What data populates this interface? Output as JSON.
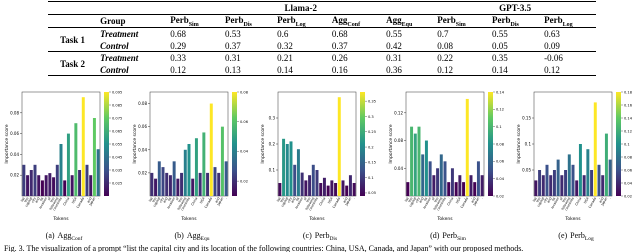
{
  "table": {
    "group_header": "Group",
    "models": [
      {
        "label": "Llama-2",
        "columns": [
          {
            "base": "Perb",
            "sub": "Sim"
          },
          {
            "base": "Perb",
            "sub": "Dis"
          },
          {
            "base": "Perb",
            "sub": "Log"
          },
          {
            "base": "Agg",
            "sub": "Conf"
          },
          {
            "base": "Agg",
            "sub": "Equ"
          }
        ]
      },
      {
        "label": "GPT-3.5",
        "columns": [
          {
            "base": "Perb",
            "sub": "Sim"
          },
          {
            "base": "Perb",
            "sub": "Dis"
          },
          {
            "base": "Perb",
            "sub": "Log"
          }
        ]
      }
    ],
    "rows": [
      {
        "task": "Task 1",
        "entries": [
          {
            "group": "Treatment",
            "values": [
              0.68,
              0.53,
              0.6,
              0.68,
              0.55,
              0.7,
              0.55,
              0.63
            ]
          },
          {
            "group": "Control",
            "values": [
              0.29,
              0.37,
              0.32,
              0.37,
              0.42,
              0.08,
              0.05,
              0.09
            ]
          }
        ]
      },
      {
        "task": "Task 2",
        "entries": [
          {
            "group": "Treatment",
            "values": [
              0.33,
              0.31,
              0.21,
              0.26,
              0.31,
              0.22,
              0.35,
              -0.06
            ]
          },
          {
            "group": "Control",
            "values": [
              0.12,
              0.13,
              0.14,
              0.16,
              0.36,
              0.12,
              0.14,
              0.12
            ]
          }
        ]
      }
    ]
  },
  "chart_data": [
    {
      "type": "bar",
      "xlabel": "Tokens",
      "ylabel": "Importance score",
      "colormap": "viridis",
      "categories": [
        "list",
        "the",
        "capital",
        "city",
        "and",
        "its",
        "location",
        "of",
        "the",
        "following",
        "countries",
        ":",
        "China",
        ",",
        "USA",
        ",",
        "Canada",
        ",",
        "and",
        "Japan",
        "."
      ],
      "values": [
        0.03,
        0.02,
        0.025,
        0.03,
        0.02,
        0.015,
        0.02,
        0.022,
        0.018,
        0.03,
        0.05,
        0.015,
        0.06,
        0.02,
        0.07,
        0.025,
        0.095,
        0.03,
        0.02,
        0.075,
        0.045
      ],
      "ylim": [
        0,
        0.1
      ],
      "yticks": [
        0.02,
        0.04,
        0.06,
        0.08
      ],
      "clim": [
        0.015,
        0.095
      ],
      "cticks": [
        0.025,
        0.035,
        0.045,
        0.055,
        0.065,
        0.075,
        0.085,
        0.095
      ],
      "caption": {
        "label": "(a)",
        "base": "Agg",
        "sub": "Conf"
      }
    },
    {
      "type": "bar",
      "xlabel": "Tokens",
      "ylabel": "Importance score",
      "colormap": "viridis",
      "categories": [
        "list",
        "the",
        "capital",
        "city",
        "and",
        "its",
        "location",
        "of",
        "the",
        "following",
        "countries",
        ":",
        "China",
        ",",
        "USA",
        ",",
        "Canada",
        ",",
        "and",
        "Japan",
        "."
      ],
      "values": [
        0.02,
        0.015,
        0.03,
        0.025,
        0.02,
        0.018,
        0.03,
        0.015,
        0.02,
        0.04,
        0.045,
        0.015,
        0.05,
        0.02,
        0.055,
        0.02,
        0.08,
        0.025,
        0.02,
        0.06,
        0.03
      ],
      "ylim": [
        0,
        0.09
      ],
      "yticks": [
        0.02,
        0.04,
        0.06,
        0.08
      ],
      "clim": [
        0.01,
        0.08
      ],
      "cticks": [
        0.02,
        0.04,
        0.06,
        0.08
      ],
      "caption": {
        "label": "(b)",
        "base": "Agg",
        "sub": "Equ"
      }
    },
    {
      "type": "bar",
      "xlabel": "Tokens",
      "ylabel": "Importance score",
      "colormap": "viridis",
      "categories": [
        "list",
        "the",
        "capital",
        "city",
        "and",
        "its",
        "location",
        "of",
        "the",
        "following",
        "countries",
        ":",
        "China",
        ",",
        "USA",
        ",",
        "Canada",
        ",",
        "and",
        "Japan",
        "."
      ],
      "values": [
        0.05,
        0.22,
        0.2,
        0.21,
        0.12,
        0.18,
        0.09,
        0.06,
        0.08,
        0.12,
        0.1,
        0.05,
        0.07,
        0.04,
        0.06,
        0.05,
        0.38,
        0.06,
        0.04,
        0.08,
        0.05
      ],
      "ylim": [
        0,
        0.4
      ],
      "yticks": [
        0.1,
        0.2,
        0.3
      ],
      "clim": [
        0.04,
        0.38
      ],
      "cticks": [
        0.05,
        0.1,
        0.15,
        0.2,
        0.25,
        0.3,
        0.35
      ],
      "caption": {
        "label": "(c)",
        "base": "Perb",
        "sub": "Dis"
      }
    },
    {
      "type": "bar",
      "xlabel": "Tokens",
      "ylabel": "Importance score",
      "colormap": "viridis",
      "categories": [
        "list",
        "the",
        "capital",
        "city",
        "and",
        "its",
        "location",
        "of",
        "the",
        "following",
        "countries",
        ":",
        "China",
        ",",
        "USA",
        ",",
        "Canada",
        ",",
        "and",
        "Japan",
        "."
      ],
      "values": [
        0.02,
        0.1,
        0.09,
        0.1,
        0.06,
        0.08,
        0.05,
        0.03,
        0.04,
        0.06,
        0.05,
        0.02,
        0.04,
        0.02,
        0.03,
        0.02,
        0.14,
        0.03,
        0.02,
        0.05,
        0.03
      ],
      "ylim": [
        0,
        0.15
      ],
      "yticks": [
        0.04,
        0.08,
        0.12
      ],
      "clim": [
        0.02,
        0.14
      ],
      "cticks": [
        0.02,
        0.04,
        0.06,
        0.08,
        0.1,
        0.12,
        0.14
      ],
      "caption": {
        "label": "(d)",
        "base": "Perb",
        "sub": "Sim"
      }
    },
    {
      "type": "bar",
      "xlabel": "Tokens",
      "ylabel": "Importance score",
      "colormap": "viridis",
      "categories": [
        "list",
        "the",
        "capital",
        "city",
        "and",
        "its",
        "location",
        "of",
        "the",
        "following",
        "countries",
        ":",
        "China",
        ",",
        "USA",
        ",",
        "Canada",
        ",",
        "and",
        "Japan",
        "."
      ],
      "values": [
        0.03,
        0.05,
        0.04,
        0.06,
        0.04,
        0.05,
        0.07,
        0.04,
        0.05,
        0.08,
        0.06,
        0.03,
        0.1,
        0.04,
        0.09,
        0.05,
        0.18,
        0.06,
        0.04,
        0.12,
        0.07
      ],
      "ylim": [
        0,
        0.2
      ],
      "yticks": [
        0.05,
        0.1,
        0.15
      ],
      "clim": [
        0.02,
        0.18
      ],
      "cticks": [
        0.02,
        0.04,
        0.06,
        0.08,
        0.1,
        0.12,
        0.14,
        0.16,
        0.18
      ],
      "caption": {
        "label": "(e)",
        "base": "Perb",
        "sub": "Log"
      }
    }
  ],
  "figure_caption": "Fig. 3. The visualization of a prompt “list the capital city and its location of the following countries: China, USA, Canada, and Japan” with our proposed methods."
}
